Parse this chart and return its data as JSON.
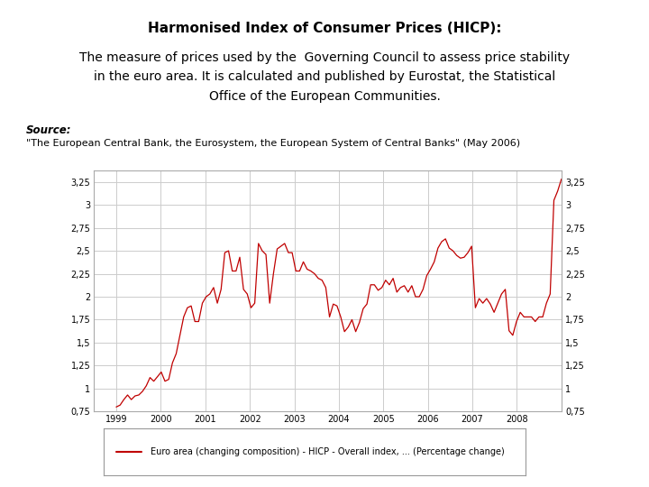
{
  "title": "Harmonised Index of Consumer Prices (HICP):",
  "body_line1": "The measure of prices used by the  Governing Council to assess price stability",
  "body_line2": "in the euro area. It is calculated and published by Eurostat, the Statistical",
  "body_line3": "Office of the European Communities.",
  "source_label": "Source:",
  "source_text": "\"The European Central Bank, the Eurosystem, the European System of Central Banks\" (May 2006)",
  "legend_label": "Euro area (changing composition) - HICP - Overall index, ... (Percentage change)",
  "line_color": "#c00000",
  "bg_color": "#ffffff",
  "grid_color": "#cccccc",
  "ylim": [
    0.75,
    3.375
  ],
  "yticks": [
    0.75,
    1.0,
    1.25,
    1.5,
    1.75,
    2.0,
    2.25,
    2.5,
    2.75,
    3.0,
    3.25
  ],
  "ytick_labels": [
    "0,75",
    "1",
    "1,25",
    "1,5",
    "1,75",
    "2",
    "2,25",
    "2,5",
    "2,75",
    "3",
    "3,25"
  ],
  "xtick_positions": [
    1999,
    2000,
    2001,
    2002,
    2003,
    2004,
    2005,
    2006,
    2007,
    2008
  ],
  "xtick_labels": [
    "1999",
    "2000",
    "2001",
    "2002",
    "2003",
    "2004",
    "2005",
    "2006",
    "2007",
    "2008"
  ],
  "xlim": [
    1998.5,
    2009.0
  ],
  "data": [
    0.8,
    0.82,
    0.88,
    0.93,
    0.88,
    0.92,
    0.93,
    0.97,
    1.03,
    1.12,
    1.08,
    1.13,
    1.18,
    1.08,
    1.1,
    1.28,
    1.38,
    1.58,
    1.78,
    1.88,
    1.9,
    1.73,
    1.73,
    1.93,
    2.0,
    2.03,
    2.1,
    1.93,
    2.08,
    2.48,
    2.5,
    2.28,
    2.28,
    2.43,
    2.08,
    2.03,
    1.88,
    1.93,
    2.58,
    2.5,
    2.46,
    1.93,
    2.25,
    2.52,
    2.55,
    2.58,
    2.48,
    2.48,
    2.28,
    2.28,
    2.38,
    2.3,
    2.28,
    2.25,
    2.2,
    2.18,
    2.1,
    1.78,
    1.92,
    1.9,
    1.78,
    1.62,
    1.67,
    1.75,
    1.62,
    1.72,
    1.87,
    1.92,
    2.13,
    2.13,
    2.07,
    2.1,
    2.18,
    2.13,
    2.2,
    2.05,
    2.1,
    2.12,
    2.05,
    2.12,
    2.0,
    2.0,
    2.08,
    2.23,
    2.3,
    2.38,
    2.53,
    2.6,
    2.63,
    2.53,
    2.5,
    2.45,
    2.42,
    2.43,
    2.48,
    2.55,
    1.88,
    1.98,
    1.93,
    1.98,
    1.92,
    1.83,
    1.93,
    2.03,
    2.08,
    1.63,
    1.58,
    1.73,
    1.83,
    1.78,
    1.78,
    1.78,
    1.73,
    1.78,
    1.78,
    1.93,
    2.03,
    3.05,
    3.15,
    3.28
  ]
}
